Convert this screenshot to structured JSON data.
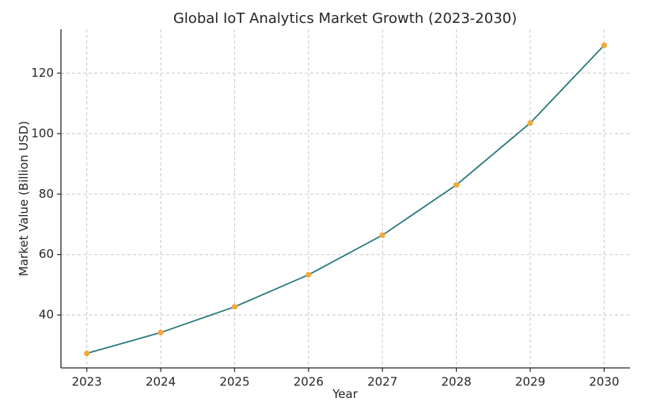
{
  "chart_data": {
    "type": "line",
    "title": "Global IoT Analytics Market Growth (2023-2030)",
    "xlabel": "Year",
    "ylabel": "Market Value (Billion USD)",
    "x": [
      2023,
      2024,
      2025,
      2026,
      2027,
      2028,
      2029,
      2030
    ],
    "x_tick_labels": [
      "2023",
      "2024",
      "2025",
      "2026",
      "2027",
      "2028",
      "2029",
      "2030"
    ],
    "series": [
      {
        "values": [
          27.3,
          34.2,
          42.7,
          53.3,
          66.4,
          83.0,
          103.5,
          129.2
        ],
        "line_color": "#2b7a7b",
        "marker_color": "#f2a93b"
      }
    ],
    "yticks": [
      40,
      60,
      80,
      100,
      120
    ],
    "y_tick_labels": [
      "40",
      "60",
      "80",
      "100",
      "120"
    ],
    "xlim": [
      2022.65,
      2030.35
    ],
    "ylim": [
      22.5,
      134.5
    ],
    "grid": true,
    "grid_style": "dashed"
  }
}
